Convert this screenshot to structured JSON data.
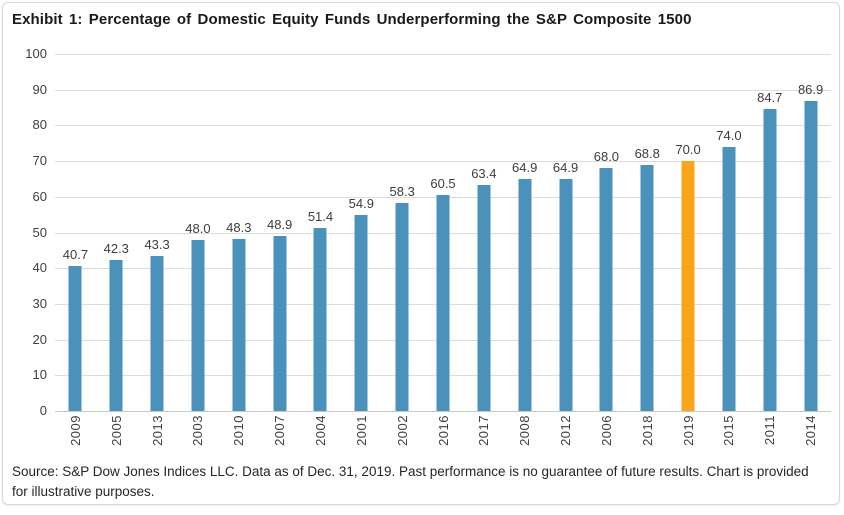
{
  "chart_data": {
    "type": "bar",
    "title": "Exhibit 1: Percentage of Domestic Equity Funds Underperforming the S&P Composite 1500",
    "categories": [
      "2009",
      "2005",
      "2013",
      "2003",
      "2010",
      "2007",
      "2004",
      "2001",
      "2002",
      "2016",
      "2017",
      "2008",
      "2012",
      "2006",
      "2018",
      "2019",
      "2015",
      "2011",
      "2014"
    ],
    "values": [
      40.7,
      42.3,
      43.3,
      48.0,
      48.3,
      48.9,
      51.4,
      54.9,
      58.3,
      60.5,
      63.4,
      64.9,
      64.9,
      68.0,
      68.8,
      70.0,
      74.0,
      84.7,
      86.9
    ],
    "value_labels": [
      "40.7",
      "42.3",
      "43.3",
      "48.0",
      "48.3",
      "48.9",
      "51.4",
      "54.9",
      "58.3",
      "60.5",
      "63.4",
      "64.9",
      "64.9",
      "68.0",
      "68.8",
      "70.0",
      "74.0",
      "84.7",
      "86.9"
    ],
    "highlight_category": "2019",
    "bar_color": "#4A92BC",
    "highlight_color": "#FAA519",
    "ylim": [
      0,
      100
    ],
    "yticks": [
      0,
      10,
      20,
      30,
      40,
      50,
      60,
      70,
      80,
      90,
      100
    ],
    "grid": true,
    "legend": "none",
    "xlabel": "",
    "ylabel": ""
  },
  "footer": {
    "source_text": "Source: S&P Dow Jones Indices LLC. Data as of Dec. 31, 2019. Past performance is no guarantee of future results. Chart is provided for illustrative purposes."
  }
}
